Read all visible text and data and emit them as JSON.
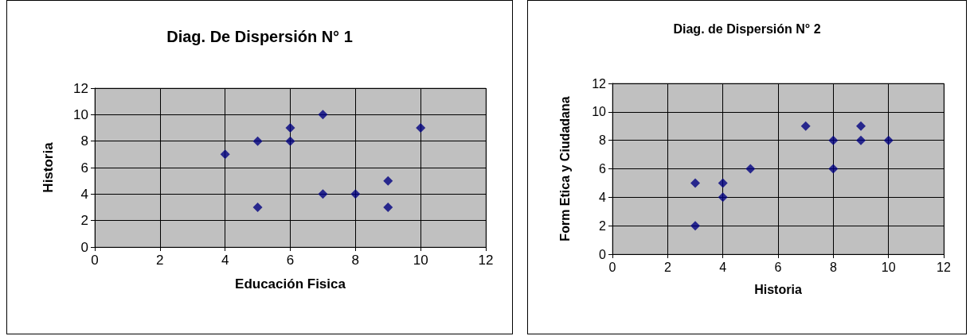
{
  "chart_data": [
    {
      "type": "scatter",
      "title": "Diag. De Dispersión N° 1",
      "xlabel": "Educación Fisica",
      "ylabel": "Historia",
      "marker": "diamond",
      "grid": true,
      "xlim": [
        0,
        12
      ],
      "xticks": [
        0,
        2,
        4,
        6,
        8,
        10,
        12
      ],
      "ylim": [
        0,
        12
      ],
      "yticks": [
        0,
        2,
        4,
        6,
        8,
        10,
        12
      ],
      "series": [
        {
          "color": "#000080",
          "x": [
            4,
            5,
            5,
            6,
            6,
            7,
            7,
            8,
            9,
            9,
            10
          ],
          "values": [
            7,
            8,
            3,
            9,
            8,
            10,
            4,
            4,
            5,
            3,
            9
          ]
        }
      ]
    },
    {
      "type": "scatter",
      "title": "Diag. de Dispersión N° 2",
      "xlabel": "Historia",
      "ylabel": "Form Etica y Ciudadana",
      "marker": "diamond",
      "grid": true,
      "xlim": [
        0,
        12
      ],
      "xticks": [
        0,
        2,
        4,
        6,
        8,
        10,
        12
      ],
      "ylim": [
        0,
        12
      ],
      "yticks": [
        0,
        2,
        4,
        6,
        8,
        10,
        12
      ],
      "series": [
        {
          "color": "#000080",
          "x": [
            3,
            3,
            4,
            4,
            5,
            7,
            8,
            8,
            9,
            9,
            10
          ],
          "values": [
            5,
            2,
            5,
            4,
            6,
            9,
            8,
            6,
            9,
            8,
            8
          ]
        }
      ]
    }
  ]
}
